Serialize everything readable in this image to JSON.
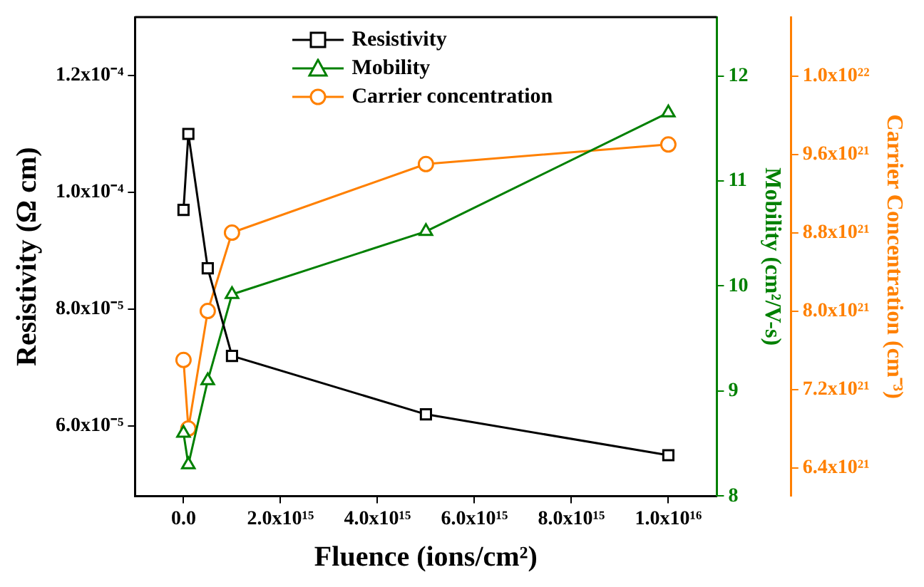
{
  "chart_data": {
    "type": "line",
    "xlabel": "Fluence (ions/cm²)",
    "ylabel": "Resistivity (Ω cm)",
    "y2label": "Mobility (cm²/V-s)",
    "y3label": "Carrier Concentration (cm⁻³)",
    "x": [
      0,
      100000000000000.0,
      500000000000000.0,
      1000000000000000.0,
      5000000000000000.0,
      1e+16
    ],
    "xlim": [
      -1000000000000000.0,
      1.1e+16
    ],
    "xticks": [
      {
        "value": 0,
        "label": "0.0"
      },
      {
        "value": 2000000000000000.0,
        "label": "2.0x10¹⁵"
      },
      {
        "value": 4000000000000000.0,
        "label": "4.0x10¹⁵"
      },
      {
        "value": 6000000000000000.0,
        "label": "6.0x10¹⁵"
      },
      {
        "value": 8000000000000000.0,
        "label": "8.0x10¹⁵"
      },
      {
        "value": 1e+16,
        "label": "1.0x10¹⁶"
      }
    ],
    "ylim": [
      4.8e-05,
      0.00013
    ],
    "yticks": [
      {
        "value": 6e-05,
        "label": "6.0x10⁻⁵"
      },
      {
        "value": 8e-05,
        "label": "8.0x10⁻⁵"
      },
      {
        "value": 0.0001,
        "label": "1.0x10⁻⁴"
      },
      {
        "value": 0.00012,
        "label": "1.2x10⁻⁴"
      }
    ],
    "y2lim": [
      8,
      12.56
    ],
    "y2ticks": [
      8,
      9,
      10,
      11,
      12
    ],
    "y3lim": [
      6.11e+21,
      1.1e+22
    ],
    "y3ticks": [
      {
        "value": 6.4e+21,
        "label": "6.4x10²¹"
      },
      {
        "value": 7.2e+21,
        "label": "7.2x10²¹"
      },
      {
        "value": 8e+21,
        "label": "8.0x10²¹"
      },
      {
        "value": 8.8e+21,
        "label": "8.8x10²¹"
      },
      {
        "value": 9.6e+21,
        "label": "9.6x10²¹"
      },
      {
        "value": 1.04e+22,
        "label": "1.0x10²²"
      }
    ],
    "series": [
      {
        "name": "Resistivity",
        "color": "#000000",
        "marker": "square",
        "values": [
          9.7e-05,
          0.00011,
          8.7e-05,
          7.2e-05,
          6.2e-05,
          5.5e-05
        ]
      },
      {
        "name": "Mobility",
        "color": "#008000",
        "marker": "triangle",
        "axis": "y2",
        "values": [
          8.6,
          8.3,
          9.1,
          9.92,
          10.52,
          11.65
        ]
      },
      {
        "name": "Carrier concentration",
        "color": "#ff8000",
        "marker": "circle",
        "axis": "y3",
        "values": [
          7.5e+21,
          6.8e+21,
          8e+21,
          8.8e+21,
          9.5e+21,
          9.7e+21
        ]
      }
    ],
    "legend": "top left",
    "grid": false,
    "line_style": "solid"
  }
}
